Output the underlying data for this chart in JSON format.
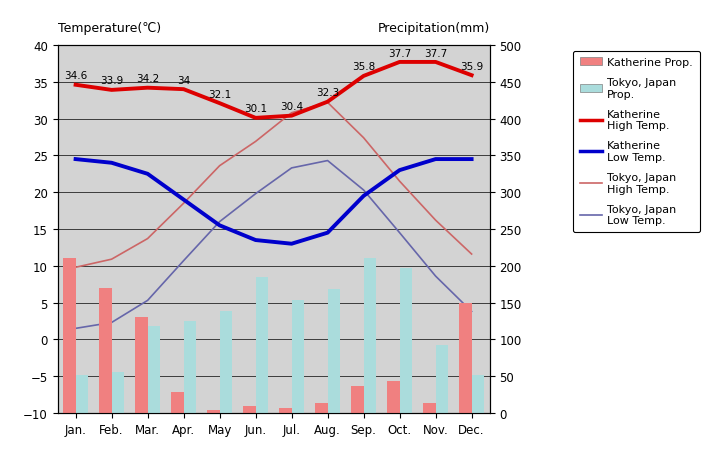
{
  "months": [
    "Jan.",
    "Feb.",
    "Mar.",
    "Apr.",
    "May",
    "Jun.",
    "Jul.",
    "Aug.",
    "Sep.",
    "Oct.",
    "Nov.",
    "Dec."
  ],
  "katherine_precip_mm": [
    210,
    170,
    130,
    28,
    4,
    10,
    7,
    13,
    37,
    43,
    14,
    150
  ],
  "tokyo_precip_mm": [
    52,
    56,
    118,
    125,
    138,
    185,
    153,
    168,
    210,
    197,
    93,
    51
  ],
  "katherine_high": [
    34.6,
    33.9,
    34.2,
    34.0,
    32.1,
    30.1,
    30.4,
    32.3,
    35.8,
    37.7,
    37.7,
    35.9
  ],
  "katherine_low": [
    24.5,
    24.0,
    22.5,
    19.0,
    15.5,
    13.5,
    13.0,
    14.5,
    19.5,
    23.0,
    24.5,
    24.5
  ],
  "tokyo_high": [
    9.8,
    10.9,
    13.7,
    18.5,
    23.6,
    26.9,
    30.8,
    32.2,
    27.4,
    21.5,
    16.2,
    11.6
  ],
  "tokyo_low": [
    1.5,
    2.3,
    5.3,
    10.7,
    16.0,
    19.8,
    23.3,
    24.3,
    20.3,
    14.5,
    8.6,
    3.8
  ],
  "katherine_high_labels": [
    "34.6",
    "33.9",
    "34.2",
    "34",
    "32.1",
    "30.1",
    "30.4",
    "32.3",
    "35.8",
    "37.7",
    "37.7",
    "35.9"
  ],
  "title_left": "Temperature(℃)",
  "title_right": "Precipitation(mm)",
  "temp_ylim": [
    -10,
    40
  ],
  "precip_ylim": [
    0,
    500
  ],
  "bg_color": "#d3d3d3",
  "katherine_precip_color": "#f08080",
  "tokyo_precip_color": "#aadcdc",
  "katherine_high_color": "#dd0000",
  "katherine_low_color": "#0000cc",
  "tokyo_high_color": "#cc6666",
  "tokyo_low_color": "#6666aa",
  "legend_labels": [
    "Katherine Prop.",
    "Tokyo, Japan\nProp.",
    "Katherine\nHigh Temp.",
    "Katherine\nLow Temp.",
    "Tokyo, Japan\nHigh Temp.",
    "Tokyo, Japan\nLow Temp."
  ]
}
